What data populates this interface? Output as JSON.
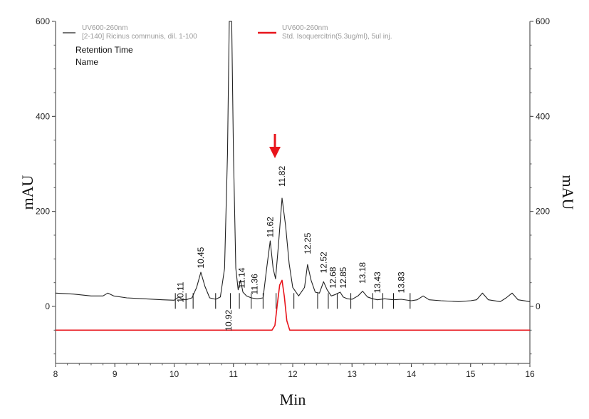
{
  "chart_data": {
    "type": "line",
    "xlabel": "Min",
    "ylabel_left": "mAU",
    "ylabel_right": "mAU",
    "xlim": [
      8,
      16
    ],
    "ylim": [
      -120,
      600
    ],
    "x_ticks": [
      8,
      9,
      10,
      11,
      12,
      13,
      14,
      15,
      16
    ],
    "y_ticks": [
      0,
      200,
      400,
      600
    ],
    "grid": false,
    "legend_placement": "top-left",
    "legend_header": [
      "Retention Time",
      "Name"
    ],
    "series": [
      {
        "name": "UV@00 260nm",
        "legend_lines": [
          "UV600-260nm",
          "[2-140] Ricinus communis, dil. 1-100"
        ],
        "color": "#222222",
        "x": [
          8.0,
          8.3,
          8.6,
          8.8,
          8.88,
          8.98,
          9.2,
          9.5,
          9.8,
          10.0,
          10.08,
          10.13,
          10.2,
          10.3,
          10.38,
          10.45,
          10.52,
          10.6,
          10.7,
          10.78,
          10.85,
          10.9,
          10.93,
          10.95,
          10.97,
          11.0,
          11.04,
          11.08,
          11.12,
          11.16,
          11.22,
          11.3,
          11.4,
          11.5,
          11.56,
          11.62,
          11.67,
          11.71,
          11.76,
          11.82,
          11.88,
          11.94,
          12.0,
          12.1,
          12.2,
          12.25,
          12.31,
          12.38,
          12.45,
          12.52,
          12.58,
          12.65,
          12.72,
          12.8,
          12.85,
          12.92,
          13.0,
          13.1,
          13.18,
          13.26,
          13.35,
          13.43,
          13.55,
          13.7,
          13.83,
          14.0,
          14.1,
          14.2,
          14.3,
          14.5,
          14.8,
          15.0,
          15.1,
          15.2,
          15.3,
          15.5,
          15.6,
          15.7,
          15.8,
          16.0
        ],
        "y": [
          28,
          26,
          22,
          22,
          28,
          22,
          18,
          16,
          14,
          13,
          20,
          15,
          14,
          18,
          40,
          72,
          42,
          18,
          15,
          20,
          80,
          320,
          600,
          600,
          600,
          320,
          80,
          35,
          55,
          30,
          22,
          18,
          16,
          18,
          80,
          138,
          80,
          58,
          130,
          228,
          170,
          90,
          40,
          22,
          40,
          88,
          55,
          30,
          28,
          52,
          35,
          22,
          25,
          30,
          20,
          16,
          15,
          22,
          32,
          20,
          16,
          14,
          16,
          14,
          15,
          12,
          14,
          22,
          14,
          12,
          10,
          12,
          14,
          28,
          14,
          10,
          18,
          28,
          14,
          10
        ]
      },
      {
        "name": "UV@00 260nm Std. Isoquercitrin",
        "legend_lines": [
          "UV600-260nm",
          "Std. Isoquercitrin(5.3ug/ml), 5ul inj."
        ],
        "color": "#e8141b",
        "x": [
          8.0,
          11.6,
          11.65,
          11.7,
          11.74,
          11.78,
          11.82,
          11.86,
          11.9,
          11.95,
          12.0,
          16.0
        ],
        "y": [
          -50,
          -50,
          -50,
          -40,
          5,
          45,
          55,
          20,
          -30,
          -50,
          -50,
          -50
        ]
      }
    ],
    "peak_labels": [
      {
        "x": 10.11,
        "text": "10.11",
        "y": 8
      },
      {
        "x": 10.45,
        "text": "10.45",
        "y": 80
      },
      {
        "x": 10.92,
        "text": "10.92",
        "y": -52
      },
      {
        "x": 11.14,
        "text": "11.14",
        "y": 38
      },
      {
        "x": 11.36,
        "text": "11.36",
        "y": 25
      },
      {
        "x": 11.62,
        "text": "11.62",
        "y": 145
      },
      {
        "x": 11.82,
        "text": "11.82",
        "y": 252
      },
      {
        "x": 12.25,
        "text": "12.25",
        "y": 110
      },
      {
        "x": 12.52,
        "text": "12.52",
        "y": 70
      },
      {
        "x": 12.68,
        "text": "12.68",
        "y": 38
      },
      {
        "x": 12.85,
        "text": "12.85",
        "y": 38
      },
      {
        "x": 13.18,
        "text": "13.18",
        "y": 48
      },
      {
        "x": 13.43,
        "text": "13.43",
        "y": 28
      },
      {
        "x": 13.83,
        "text": "13.83",
        "y": 28
      }
    ],
    "baseline_ticks": [
      10.02,
      10.2,
      10.32,
      10.7,
      10.95,
      11.1,
      11.3,
      11.5,
      11.72,
      12.02,
      12.42,
      12.6,
      12.75,
      12.98,
      13.35,
      13.52,
      13.7,
      13.98
    ],
    "annotation_arrow": {
      "x": 11.82,
      "color": "#e8141b"
    }
  }
}
